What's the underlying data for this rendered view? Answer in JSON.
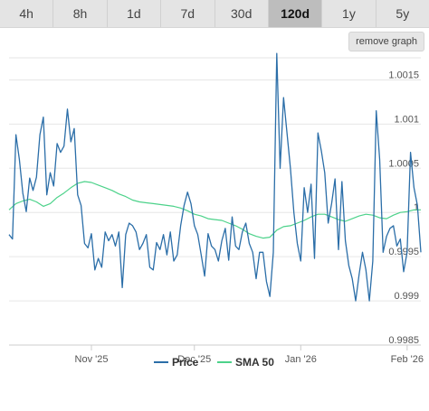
{
  "tabs": [
    {
      "label": "4h",
      "active": false
    },
    {
      "label": "8h",
      "active": false
    },
    {
      "label": "1d",
      "active": false
    },
    {
      "label": "7d",
      "active": false
    },
    {
      "label": "30d",
      "active": false
    },
    {
      "label": "120d",
      "active": true
    },
    {
      "label": "1y",
      "active": false
    },
    {
      "label": "5y",
      "active": false
    }
  ],
  "remove_graph_label": "remove graph",
  "chart_data": {
    "type": "line",
    "ylim": [
      0.9985,
      1.00175
    ],
    "xlim": [
      0,
      120
    ],
    "y_ticks": [
      {
        "value": 1.0015,
        "label": "1.0015"
      },
      {
        "value": 1.001,
        "label": "1.001"
      },
      {
        "value": 1.0005,
        "label": "1.0005"
      },
      {
        "value": 1.0,
        "label": "1"
      },
      {
        "value": 0.9995,
        "label": "0.9995"
      },
      {
        "value": 0.999,
        "label": "0.999"
      },
      {
        "value": 0.9985,
        "label": "0.9985"
      }
    ],
    "x_ticks": [
      {
        "x": 24,
        "label": "Nov '25"
      },
      {
        "x": 54,
        "label": "Dec '25"
      },
      {
        "x": 85,
        "label": "Jan '26"
      },
      {
        "x": 116,
        "label": "Feb '26"
      }
    ],
    "grid": true,
    "legend": "bottom-center",
    "colors": {
      "price": "#2b6ea8",
      "sma": "#4cd28a"
    },
    "series": [
      {
        "name": "Price",
        "x": [
          0,
          1,
          2,
          3,
          4,
          5,
          6,
          7,
          8,
          9,
          10,
          11,
          12,
          13,
          14,
          15,
          16,
          17,
          18,
          19,
          20,
          21,
          22,
          23,
          24,
          25,
          26,
          27,
          28,
          29,
          30,
          31,
          32,
          33,
          34,
          35,
          36,
          37,
          38,
          39,
          40,
          41,
          42,
          43,
          44,
          45,
          46,
          47,
          48,
          49,
          50,
          51,
          52,
          53,
          54,
          55,
          56,
          57,
          58,
          59,
          60,
          61,
          62,
          63,
          64,
          65,
          66,
          67,
          68,
          69,
          70,
          71,
          72,
          73,
          74,
          75,
          76,
          77,
          78,
          79,
          80,
          81,
          82,
          83,
          84,
          85,
          86,
          87,
          88,
          89,
          90,
          91,
          92,
          93,
          94,
          95,
          96,
          97,
          98,
          99,
          100,
          101,
          102,
          103,
          104,
          105,
          106,
          107,
          108,
          109,
          110,
          111,
          112,
          113,
          114,
          115,
          116,
          117,
          118,
          119,
          120
        ],
        "values": [
          0.99975,
          0.9997,
          1.00088,
          1.0006,
          1.00022,
          1.00001,
          1.00039,
          1.00025,
          1.0004,
          1.00088,
          1.00108,
          1.0002,
          1.00045,
          1.0003,
          1.00078,
          1.00068,
          1.00075,
          1.00117,
          1.0008,
          1.00095,
          1.0002,
          1.00008,
          0.99965,
          0.9996,
          0.99976,
          0.99935,
          0.99948,
          0.99938,
          0.99978,
          0.99968,
          0.99975,
          0.99962,
          0.99978,
          0.99915,
          0.99975,
          0.99988,
          0.99985,
          0.99978,
          0.99958,
          0.99965,
          0.99975,
          0.99938,
          0.99935,
          0.99966,
          0.99958,
          0.99975,
          0.99952,
          0.99978,
          0.99945,
          0.99952,
          0.99985,
          1.00008,
          1.00023,
          1.0001,
          0.99985,
          0.99975,
          0.99952,
          0.99928,
          0.99976,
          0.99962,
          0.99958,
          0.99945,
          0.99968,
          0.99982,
          0.99946,
          0.99995,
          0.99962,
          0.99958,
          0.99978,
          0.99988,
          0.99965,
          0.99955,
          0.99925,
          0.99955,
          0.99955,
          0.99922,
          0.99905,
          0.99955,
          1.0018,
          1.0005,
          1.0013,
          1.0009,
          1.0005,
          1.0,
          0.99965,
          0.99945,
          1.00028,
          1.0,
          1.00032,
          0.99948,
          1.0009,
          1.0007,
          1.00045,
          0.99988,
          1.0001,
          1.00038,
          0.99958,
          1.00035,
          0.99968,
          0.9994,
          0.99925,
          0.999,
          0.9993,
          0.99955,
          0.99935,
          0.999,
          0.99945,
          1.00115,
          1.0006,
          0.99955,
          0.99973,
          0.99982,
          0.99985,
          0.99962,
          0.9997,
          0.99933,
          0.99955,
          1.00068,
          1.00028,
          1.00008,
          0.99955
        ]
      },
      {
        "name": "SMA 50",
        "x": [
          0,
          2,
          4,
          6,
          8,
          10,
          12,
          14,
          16,
          18,
          20,
          22,
          24,
          26,
          28,
          30,
          32,
          34,
          36,
          38,
          40,
          42,
          44,
          46,
          48,
          50,
          52,
          54,
          56,
          58,
          60,
          62,
          64,
          66,
          68,
          70,
          72,
          74,
          76,
          78,
          80,
          82,
          84,
          86,
          88,
          90,
          92,
          94,
          96,
          98,
          100,
          102,
          104,
          106,
          108,
          110,
          112,
          114,
          116,
          118,
          120
        ],
        "values": [
          1.00003,
          1.0001,
          1.00013,
          1.00015,
          1.00012,
          1.00007,
          1.0001,
          1.00017,
          1.00022,
          1.00028,
          1.00033,
          1.00035,
          1.00034,
          1.00031,
          1.00028,
          1.00025,
          1.00021,
          1.00018,
          1.00014,
          1.00012,
          1.00011,
          1.0001,
          1.00009,
          1.00008,
          1.00007,
          1.00005,
          1.00002,
          0.99998,
          0.99996,
          0.99993,
          0.99992,
          0.99991,
          0.99988,
          0.99985,
          0.99981,
          0.99976,
          0.99973,
          0.99971,
          0.99972,
          0.9998,
          0.99984,
          0.99985,
          0.99988,
          0.99991,
          0.99995,
          0.99998,
          0.99998,
          0.99995,
          0.99992,
          0.9999,
          0.99993,
          0.99996,
          0.99998,
          0.99997,
          0.99994,
          0.99993,
          0.99997,
          1.0,
          1.00001,
          1.00003,
          1.00003
        ]
      }
    ]
  }
}
